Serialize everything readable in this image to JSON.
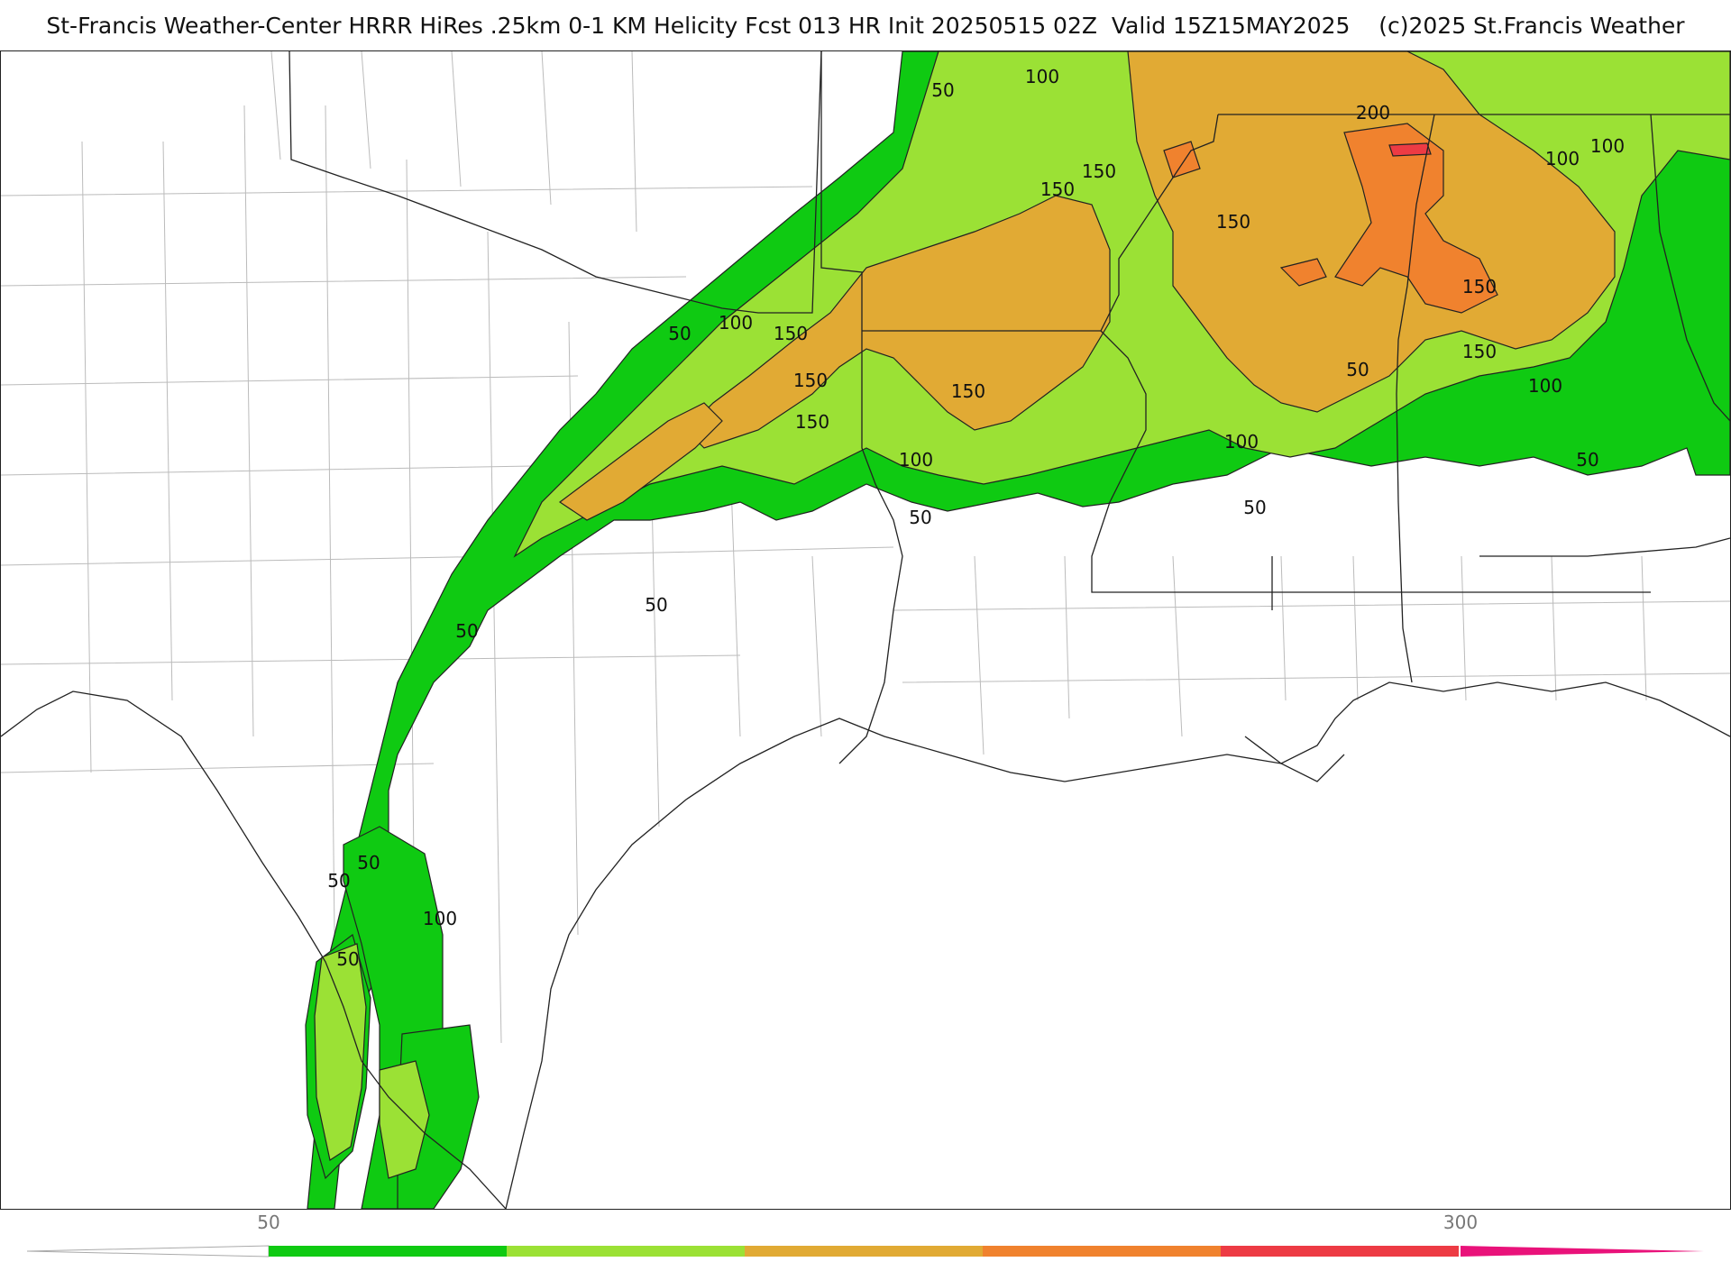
{
  "header": {
    "title": "St-Francis Weather-Center HRRR HiRes .25km 0-1 KM Helicity Fcst 013 HR Init 20250515 02Z  Valid 15Z15MAY2025    (c)2025 St.Francis Weather"
  },
  "map": {
    "field": "0-1 KM Helicity",
    "contour_labels": [
      {
        "value": "50"
      },
      {
        "value": "100"
      },
      {
        "value": "200"
      },
      {
        "value": "100"
      },
      {
        "value": "150"
      },
      {
        "value": "150"
      },
      {
        "value": "150"
      },
      {
        "value": "150"
      },
      {
        "value": "50"
      },
      {
        "value": "100"
      },
      {
        "value": "150"
      },
      {
        "value": "150"
      },
      {
        "value": "150"
      },
      {
        "value": "150"
      },
      {
        "value": "150"
      },
      {
        "value": "100"
      },
      {
        "value": "100"
      },
      {
        "value": "100"
      },
      {
        "value": "100"
      },
      {
        "value": "50"
      },
      {
        "value": "50"
      },
      {
        "value": "50"
      },
      {
        "value": "50"
      },
      {
        "value": "50"
      },
      {
        "value": "50"
      },
      {
        "value": "50"
      },
      {
        "value": "50"
      },
      {
        "value": "100"
      },
      {
        "value": "50"
      }
    ],
    "colors": {
      "c50": "#0fca12",
      "c100": "#9be135",
      "c150": "#e1aa34",
      "c200": "#f0822e",
      "c250": "#ed3b44",
      "c300": "#e9127a",
      "border": "#222222",
      "county": "#bbbbbb"
    }
  },
  "colorbar": {
    "tick_labels": [
      "50",
      "300"
    ],
    "colors": [
      "#0fca12",
      "#9be135",
      "#e1aa34",
      "#f0822e",
      "#ed3b44",
      "#e9127a"
    ]
  }
}
